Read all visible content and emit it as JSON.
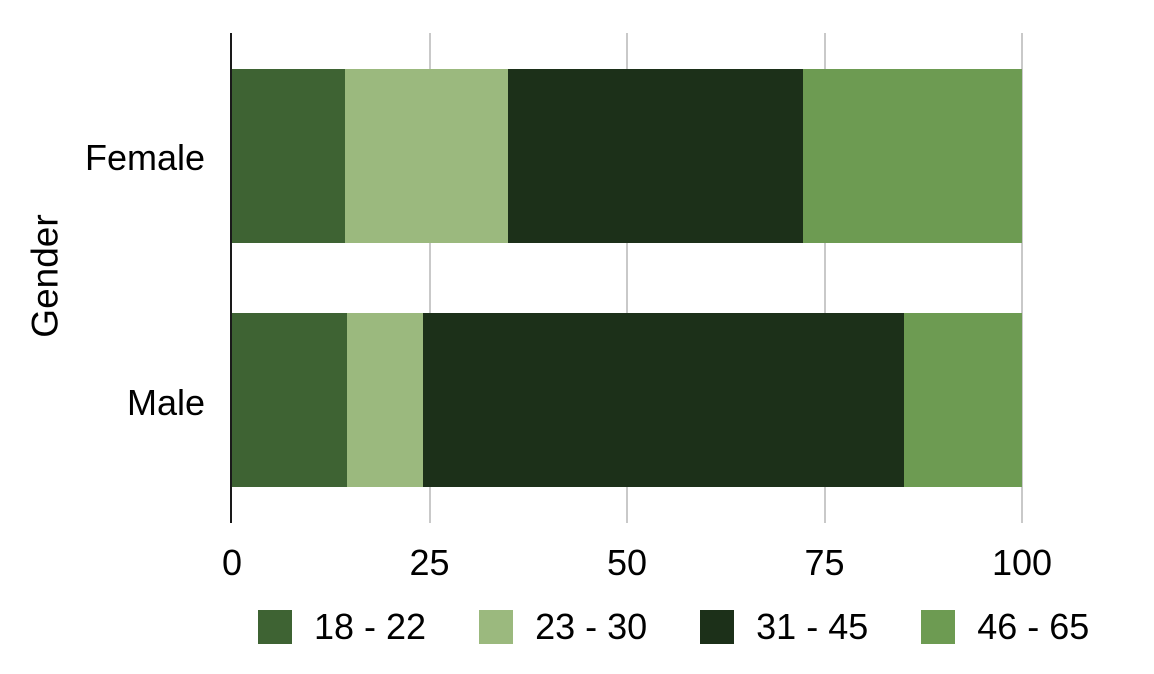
{
  "chart_data": {
    "type": "bar",
    "orientation": "horizontal",
    "stacked": true,
    "title": "",
    "xlabel": "",
    "ylabel": "Gender",
    "categories": [
      "Female",
      "Male"
    ],
    "series": [
      {
        "name": "18 - 22",
        "color": "#3e6333",
        "values": [
          14.3,
          14.5
        ]
      },
      {
        "name": "23 - 30",
        "color": "#9bb97e",
        "values": [
          20.7,
          9.7
        ]
      },
      {
        "name": "31 - 45",
        "color": "#1c3019",
        "values": [
          37.3,
          60.9
        ]
      },
      {
        "name": "46 - 65",
        "color": "#6d9b52",
        "values": [
          27.7,
          14.9
        ]
      }
    ],
    "xlim": [
      0,
      100
    ],
    "xticks": [
      0,
      25,
      50,
      75,
      100
    ],
    "xtick_labels": [
      "0",
      "25",
      "50",
      "75",
      "100"
    ],
    "grid": true,
    "gridline_color": "#c9c9c9",
    "axis_line_color": "#1a1a1a",
    "legend_position": "bottom"
  },
  "legend": {
    "items": [
      {
        "label": "18 - 22",
        "color": "#3e6333"
      },
      {
        "label": "23 - 30",
        "color": "#9bb97e"
      },
      {
        "label": "31 - 45",
        "color": "#1c3019"
      },
      {
        "label": "46 - 65",
        "color": "#6d9b52"
      }
    ]
  }
}
